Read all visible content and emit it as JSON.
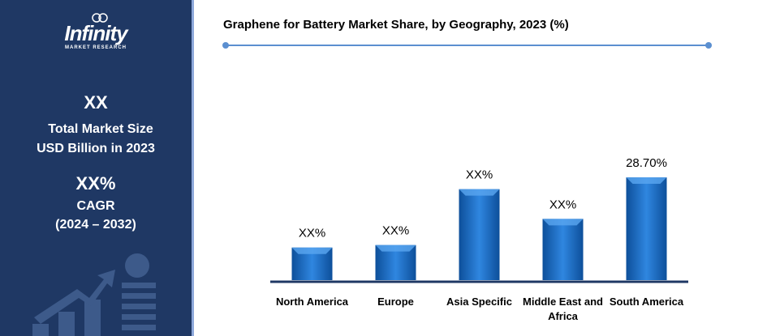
{
  "sidebar": {
    "logo": "Infinity",
    "logo_sub": "MARKET RESEARCH",
    "market_size": "XX",
    "market_size_label_1": "Total Market Size",
    "market_size_label_2": "USD Billion in 2023",
    "cagr": "XX%",
    "cagr_label_1": "CAGR",
    "cagr_label_2": "(2024 – 2032)"
  },
  "chart_data": {
    "type": "bar",
    "title": "Graphene for Battery Market Share, by Geography, 2023 (%)",
    "categories": [
      "North America",
      "Europe",
      "Asia Specific",
      "Middle East and Africa",
      "South America"
    ],
    "values": [
      9.1,
      9.8,
      25.4,
      17.1,
      28.7
    ],
    "value_labels": [
      "XX%",
      "XX%",
      "XX%",
      "XX%",
      "28.70%"
    ],
    "color": "#1f6fc5"
  }
}
